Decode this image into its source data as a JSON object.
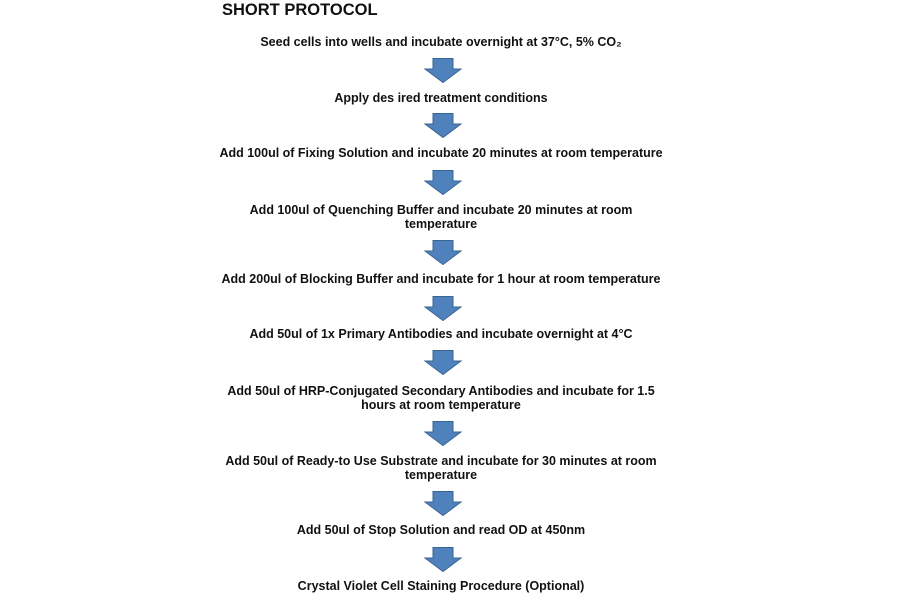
{
  "title": "SHORT PROTOCOL",
  "arrow_color": "#4f81bd",
  "steps": [
    {
      "lines": [
        "Seed cells into wells and incubate overnight at 37°C, 5% CO₂"
      ]
    },
    {
      "lines": [
        "Apply des ired treatment conditions"
      ]
    },
    {
      "lines": [
        "Add 100ul of Fixing Solution and incubate 20 minutes at room temperature"
      ]
    },
    {
      "lines": [
        "Add 100ul of Quenching Buffer and incubate 20 minutes at room",
        "temperature"
      ]
    },
    {
      "lines": [
        "Add 200ul of Blocking Buffer and incubate for 1 hour at room temperature"
      ]
    },
    {
      "lines": [
        "Add 50ul of 1x Primary Antibodies and incubate overnight at 4°C"
      ]
    },
    {
      "lines": [
        "Add 50ul of HRP-Conjugated Secondary Antibodies and incubate for 1.5",
        "hours at room temperature"
      ]
    },
    {
      "lines": [
        "Add 50ul of Ready-to Use Substrate and incubate for 30 minutes at room",
        "temperature"
      ]
    },
    {
      "lines": [
        "Add 50ul of Stop Solution and read OD at 450nm"
      ]
    },
    {
      "lines": [
        "Crystal Violet Cell Staining Procedure (Optional)"
      ]
    }
  ]
}
